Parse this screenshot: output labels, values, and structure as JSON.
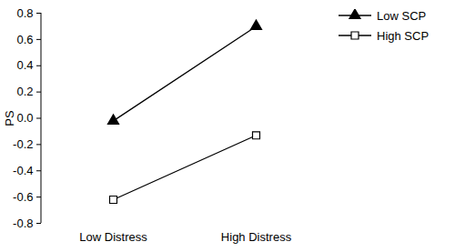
{
  "chart_data": {
    "type": "line",
    "y_label": "PS",
    "categories": [
      "Low Distress",
      "High Distress"
    ],
    "series": [
      {
        "name": "Low SCP",
        "color": "#000000",
        "marker": "triangle",
        "line_style": "solid",
        "values": [
          -0.02,
          0.7
        ]
      },
      {
        "name": "High SCP",
        "color": "#000000",
        "marker": "square-open",
        "line_style": "solid",
        "values": [
          -0.62,
          -0.13
        ]
      }
    ],
    "ylim": [
      -0.8,
      0.8
    ],
    "yticks": [
      -0.8,
      -0.6,
      -0.4,
      -0.2,
      {
        "value": 0,
        "label": "0.0"
      },
      0.2,
      0.4,
      0.6,
      0.8
    ],
    "grid": false,
    "legend": "top-right"
  }
}
